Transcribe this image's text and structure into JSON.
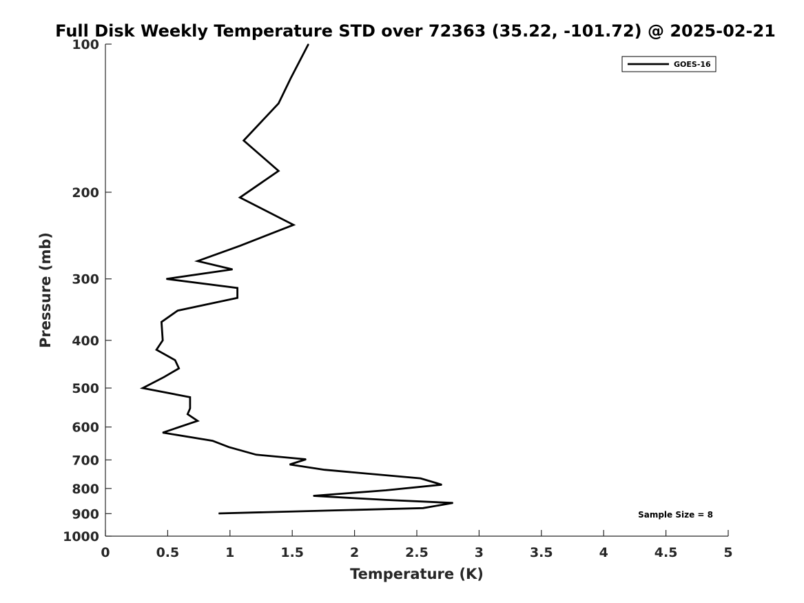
{
  "chart_data": {
    "type": "line",
    "title": "Full Disk Weekly Temperature STD over 72363 (35.22, -101.72) @ 2025-02-21",
    "xlabel": "Temperature (K)",
    "ylabel": "Pressure (mb)",
    "xlim": [
      0,
      5
    ],
    "ylim": [
      100,
      1000
    ],
    "y_scale": "log",
    "y_reversed": true,
    "x_ticks": [
      "0",
      "0.5",
      "1",
      "1.5",
      "2",
      "2.5",
      "3",
      "3.5",
      "4",
      "4.5",
      "5"
    ],
    "y_ticks": [
      "100",
      "200",
      "300",
      "400",
      "500",
      "600",
      "700",
      "800",
      "900",
      "1000"
    ],
    "grid": false,
    "legend": {
      "position": "top-right",
      "entries": [
        "GOES-16"
      ]
    },
    "annotation": "Sample Size = 8",
    "series": [
      {
        "name": "GOES-16",
        "color": "#000000",
        "points": [
          [
            1.63,
            100
          ],
          [
            1.49,
            117
          ],
          [
            1.39,
            132
          ],
          [
            1.11,
            157
          ],
          [
            1.39,
            181
          ],
          [
            1.08,
            205
          ],
          [
            1.51,
            233
          ],
          [
            1.08,
            257
          ],
          [
            0.74,
            276
          ],
          [
            1.02,
            287
          ],
          [
            0.49,
            300
          ],
          [
            1.06,
            313
          ],
          [
            1.06,
            328
          ],
          [
            0.58,
            348
          ],
          [
            0.45,
            367
          ],
          [
            0.46,
            400
          ],
          [
            0.41,
            418
          ],
          [
            0.56,
            439
          ],
          [
            0.59,
            456
          ],
          [
            0.47,
            475
          ],
          [
            0.3,
            500
          ],
          [
            0.68,
            522
          ],
          [
            0.68,
            550
          ],
          [
            0.66,
            565
          ],
          [
            0.74,
            583
          ],
          [
            0.46,
            616
          ],
          [
            0.86,
            640
          ],
          [
            0.99,
            659
          ],
          [
            1.21,
            683
          ],
          [
            1.61,
            698
          ],
          [
            1.48,
            715
          ],
          [
            1.76,
            733
          ],
          [
            2.53,
            763
          ],
          [
            2.7,
            786
          ],
          [
            2.25,
            807
          ],
          [
            1.67,
            828
          ],
          [
            2.25,
            844
          ],
          [
            2.79,
            856
          ],
          [
            2.55,
            877
          ],
          [
            0.91,
            899
          ]
        ]
      }
    ]
  }
}
